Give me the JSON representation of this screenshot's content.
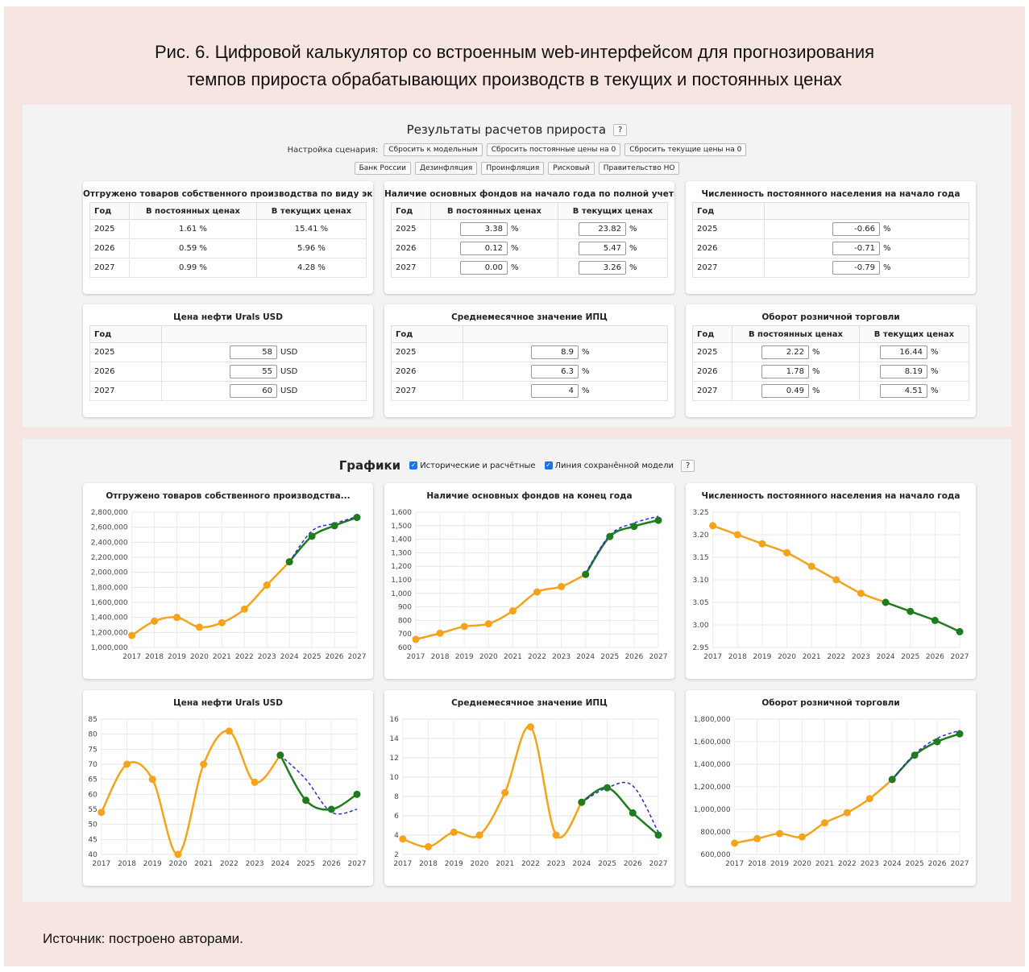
{
  "caption": [
    "Рис. 6. Цифровой калькулятор со встроенным web-интерфейсом для прогнозирования",
    "темпов прироста обрабатывающих производств в текущих и постоянных ценах"
  ],
  "results": {
    "heading": "Результаты расчетов прироста",
    "help": "?",
    "scenario_label": "Настройка сценария:",
    "buttons": [
      "Сбросить к модельным",
      "Сбросить постоянные цены на 0",
      "Сбросить текущие цены на 0"
    ],
    "presets": [
      "Банк России",
      "Дезинфляция",
      "Проинфляция",
      "Рисковый",
      "Правительство НО"
    ]
  },
  "tables": [
    {
      "title": "Отгружено товаров собственного производства по виду эконо...",
      "columns": [
        "Год",
        "В постоянных ценах",
        "В текущих ценах"
      ],
      "input": false,
      "rows": [
        [
          "2025",
          "1.61 %",
          "15.41 %"
        ],
        [
          "2026",
          "0.59 %",
          "5.96 %"
        ],
        [
          "2027",
          "0.99 %",
          "4.28 %"
        ]
      ]
    },
    {
      "title": "Наличие основных фондов на начало года по полной учетной...",
      "columns": [
        "Год",
        "В постоянных ценах",
        "В текущих ценах"
      ],
      "input": true,
      "unit": "%",
      "rows": [
        [
          "2025",
          "3.38",
          "23.82"
        ],
        [
          "2026",
          "0.12",
          "5.47"
        ],
        [
          "2027",
          "0.00",
          "3.26"
        ]
      ]
    },
    {
      "title": "Численность постоянного населения на начало года",
      "columns": [
        "Год"
      ],
      "input": true,
      "unit": "%",
      "rows": [
        [
          "2025",
          "-0.66"
        ],
        [
          "2026",
          "-0.71"
        ],
        [
          "2027",
          "-0.79"
        ]
      ]
    },
    {
      "title": "Цена нефти Urals USD",
      "columns": [
        "Год"
      ],
      "input": true,
      "unit": "USD",
      "rows": [
        [
          "2025",
          "58"
        ],
        [
          "2026",
          "55"
        ],
        [
          "2027",
          "60"
        ]
      ]
    },
    {
      "title": "Среднемесячное значение ИПЦ",
      "columns": [
        "Год"
      ],
      "input": true,
      "unit": "%",
      "rows": [
        [
          "2025",
          "8.9"
        ],
        [
          "2026",
          "6.3"
        ],
        [
          "2027",
          "4"
        ]
      ]
    },
    {
      "title": "Оборот розничной торговли",
      "columns": [
        "Год",
        "В постоянных ценах",
        "В текущих ценах"
      ],
      "input": true,
      "unit": "%",
      "rows": [
        [
          "2025",
          "2.22",
          "16.44"
        ],
        [
          "2026",
          "1.78",
          "8.19"
        ],
        [
          "2027",
          "0.49",
          "4.51"
        ]
      ]
    }
  ],
  "graphs": {
    "heading": "Графики",
    "options": [
      "Исторические и расчётные",
      "Линия сохранённой модели"
    ],
    "help": "?"
  },
  "chart_data": [
    {
      "type": "line",
      "title": "Отгружено товаров собственного производства...",
      "categories": [
        "2017",
        "2018",
        "2019",
        "2020",
        "2021",
        "2022",
        "2023",
        "2024",
        "2025",
        "2026",
        "2027"
      ],
      "ylim": [
        1000000,
        2800000
      ],
      "yticks": [
        {
          "value": 1000000,
          "label": "1,000,000"
        },
        {
          "value": 1200000,
          "label": "1,200,000"
        },
        {
          "value": 1400000,
          "label": "1,400,000"
        },
        {
          "value": 1600000,
          "label": "1,600,000"
        },
        {
          "value": 1800000,
          "label": "1,800,000"
        },
        {
          "value": 2000000,
          "label": "2,000,000"
        },
        {
          "value": 2200000,
          "label": "2,200,000"
        },
        {
          "value": 2400000,
          "label": "2,400,000"
        },
        {
          "value": 2600000,
          "label": "2,600,000"
        },
        {
          "value": 2800000,
          "label": "2,800,000"
        }
      ],
      "grid": true,
      "series": [
        {
          "color": "#f5a31a",
          "values": [
            1160000,
            1350000,
            1400000,
            1270000,
            1330000,
            1510000,
            1830000,
            2140000,
            null,
            null,
            null
          ]
        },
        {
          "color": "#1e7b1e",
          "values": [
            null,
            null,
            null,
            null,
            null,
            null,
            null,
            2140000,
            2480000,
            2620000,
            2730000
          ]
        },
        {
          "color": "#2a2ae0",
          "dashed": true,
          "values": [
            null,
            null,
            null,
            null,
            null,
            null,
            null,
            2140000,
            2550000,
            2650000,
            2740000
          ]
        }
      ]
    },
    {
      "type": "line",
      "title": "Наличие основных фондов на конец года",
      "categories": [
        "2017",
        "2018",
        "2019",
        "2020",
        "2021",
        "2022",
        "2023",
        "2024",
        "2025",
        "2026",
        "2027"
      ],
      "ylim": [
        600,
        1600
      ],
      "yticks": [
        600,
        700,
        800,
        900,
        {
          "value": 1000,
          "label": "1,000"
        },
        {
          "value": 1100,
          "label": "1,100"
        },
        {
          "value": 1200,
          "label": "1,200"
        },
        {
          "value": 1300,
          "label": "1,300"
        },
        {
          "value": 1400,
          "label": "1,400"
        },
        {
          "value": 1500,
          "label": "1,500"
        },
        {
          "value": 1600,
          "label": "1,600"
        }
      ],
      "grid": true,
      "series": [
        {
          "color": "#f5a31a",
          "values": [
            660,
            705,
            755,
            775,
            870,
            1010,
            1050,
            1140,
            null,
            null,
            null
          ]
        },
        {
          "color": "#1e7b1e",
          "values": [
            null,
            null,
            null,
            null,
            null,
            null,
            null,
            1140,
            1420,
            1495,
            1540
          ]
        },
        {
          "color": "#2a2ae0",
          "dashed": true,
          "values": [
            null,
            null,
            null,
            null,
            null,
            null,
            null,
            1150,
            1430,
            1520,
            1570
          ]
        }
      ]
    },
    {
      "type": "line",
      "title": "Численность постоянного населения на начало года",
      "categories": [
        "2017",
        "2018",
        "2019",
        "2020",
        "2021",
        "2022",
        "2023",
        "2024",
        "2025",
        "2026",
        "2027"
      ],
      "ylim": [
        2.95,
        3.25
      ],
      "yticks": [
        2.95,
        {
          "value": 3,
          "label": "3.00"
        },
        3.05,
        {
          "value": 3.1,
          "label": "3.10"
        },
        3.15,
        {
          "value": 3.2,
          "label": "3.20"
        },
        3.25
      ],
      "grid": true,
      "series": [
        {
          "color": "#f5a31a",
          "values": [
            3.22,
            3.2,
            3.18,
            3.16,
            3.13,
            3.1,
            3.07,
            3.05,
            null,
            null,
            null
          ]
        },
        {
          "color": "#1e7b1e",
          "values": [
            null,
            null,
            null,
            null,
            null,
            null,
            null,
            3.05,
            3.03,
            3.01,
            2.985
          ]
        }
      ]
    },
    {
      "type": "line",
      "title": "Цена нефти Urals USD",
      "categories": [
        "2017",
        "2018",
        "2019",
        "2020",
        "2021",
        "2022",
        "2023",
        "2024",
        "2025",
        "2026",
        "2027"
      ],
      "ylim": [
        40,
        85
      ],
      "yticks": [
        40,
        45,
        50,
        55,
        60,
        65,
        70,
        75,
        80,
        85
      ],
      "grid": true,
      "series": [
        {
          "color": "#f5a31a",
          "values": [
            54,
            70,
            65,
            40,
            70,
            81,
            64,
            73,
            null,
            null,
            null
          ]
        },
        {
          "color": "#1e7b1e",
          "values": [
            null,
            null,
            null,
            null,
            null,
            null,
            null,
            73,
            58,
            55,
            60
          ]
        },
        {
          "color": "#2a2ae0",
          "dashed": true,
          "values": [
            null,
            null,
            null,
            null,
            null,
            null,
            null,
            73,
            65,
            54,
            55
          ]
        }
      ]
    },
    {
      "type": "line",
      "title": "Среднемесячное значение ИПЦ",
      "categories": [
        "2017",
        "2018",
        "2019",
        "2020",
        "2021",
        "2022",
        "2023",
        "2024",
        "2025",
        "2026",
        "2027"
      ],
      "ylim": [
        2,
        16
      ],
      "yticks": [
        2,
        4,
        6,
        8,
        10,
        12,
        14,
        16
      ],
      "grid": true,
      "series": [
        {
          "color": "#f5a31a",
          "values": [
            3.6,
            2.8,
            4.3,
            4.0,
            8.4,
            15.2,
            4.0,
            7.4,
            null,
            null,
            null
          ]
        },
        {
          "color": "#1e7b1e",
          "values": [
            null,
            null,
            null,
            null,
            null,
            null,
            null,
            7.4,
            8.9,
            6.3,
            4
          ]
        },
        {
          "color": "#2a2ae0",
          "dashed": true,
          "values": [
            null,
            null,
            null,
            null,
            null,
            null,
            null,
            7.4,
            8.9,
            9.1,
            4.3
          ]
        }
      ]
    },
    {
      "type": "line",
      "title": "Оборот розничной торговли",
      "categories": [
        "2017",
        "2018",
        "2019",
        "2020",
        "2021",
        "2022",
        "2023",
        "2024",
        "2025",
        "2026",
        "2027"
      ],
      "ylim": [
        600000,
        1800000
      ],
      "yticks": [
        {
          "value": 600000,
          "label": "600,000"
        },
        {
          "value": 800000,
          "label": "800,000"
        },
        {
          "value": 1000000,
          "label": "1,000,000"
        },
        {
          "value": 1200000,
          "label": "1,200,000"
        },
        {
          "value": 1400000,
          "label": "1,400,000"
        },
        {
          "value": 1600000,
          "label": "1,600,000"
        },
        {
          "value": 1800000,
          "label": "1,800,000"
        }
      ],
      "grid": true,
      "series": [
        {
          "color": "#f5a31a",
          "values": [
            700000,
            740000,
            785000,
            755000,
            880000,
            970000,
            1095000,
            1265000,
            null,
            null,
            null
          ]
        },
        {
          "color": "#1e7b1e",
          "values": [
            null,
            null,
            null,
            null,
            null,
            null,
            null,
            1265000,
            1480000,
            1600000,
            1670000
          ]
        },
        {
          "color": "#2a2ae0",
          "dashed": true,
          "values": [
            null,
            null,
            null,
            null,
            null,
            null,
            null,
            1265000,
            1490000,
            1630000,
            1700000
          ]
        }
      ]
    }
  ],
  "source": "Источник: построено авторами."
}
